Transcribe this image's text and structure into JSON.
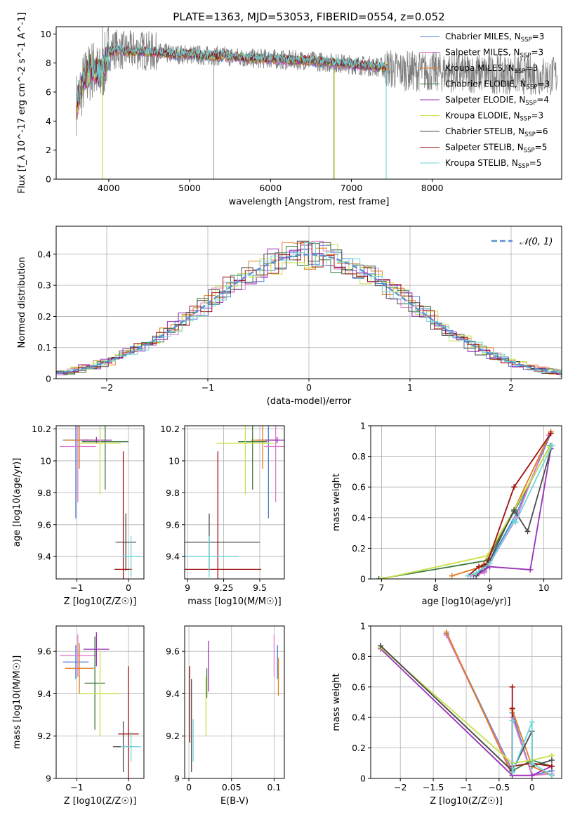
{
  "figure": {
    "title": "PLATE=1363, MJD=53053, FIBERID=0554, z=0.052"
  },
  "series_styles": [
    {
      "name": "Chabrier MILES, N_SSP=3",
      "color": "#4f81d3"
    },
    {
      "name": "Salpeter MILES, N_SSP=3",
      "color": "#e07bd0"
    },
    {
      "name": "Kroupa MILES, N_SSP=3",
      "color": "#e07b1e"
    },
    {
      "name": "Chabrier ELODIE, N_SSP=3",
      "color": "#3c7a3c"
    },
    {
      "name": "Salpeter ELODIE, N_SSP=4",
      "color": "#9a2eb8"
    },
    {
      "name": "Kroupa ELODIE, N_SSP=3",
      "color": "#c9e04a"
    },
    {
      "name": "Chabrier STELIB, N_SSP=6",
      "color": "#4d4d4d"
    },
    {
      "name": "Salpeter STELIB, N_SSP=5",
      "color": "#a01010"
    },
    {
      "name": "Kroupa STELIB, N_SSP=5",
      "color": "#6fd6dc"
    }
  ],
  "chart_data": [
    {
      "id": "spectrum",
      "type": "line",
      "title": "PLATE=1363, MJD=53053, FIBERID=0554, z=0.052",
      "xlabel": "wavelength [Angstrom, rest frame]",
      "ylabel": "Flux [f_λ 10^-17 erg cm^-2 s^-1 A^-1]",
      "xlim": [
        3350,
        9600
      ],
      "ylim": [
        0,
        10.5
      ],
      "xticks": [
        4000,
        5000,
        6000,
        7000,
        8000
      ],
      "yticks": [
        0,
        2,
        4,
        6,
        8,
        10
      ],
      "legend": {
        "placement": "top-right",
        "entries": [
          "Chabrier MILES, N_SSP=3",
          "Salpeter MILES, N_SSP=3",
          "Kroupa MILES, N_SSP=3",
          "Chabrier ELODIE, N_SSP=3",
          "Salpeter ELODIE, N_SSP=4",
          "Kroupa ELODIE, N_SSP=3",
          "Chabrier STELIB, N_SSP=6",
          "Salpeter STELIB, N_SSP=5",
          "Kroupa STELIB, N_SSP=5"
        ]
      },
      "data_envelope": {
        "x": [
          3600,
          3700,
          3800,
          3900,
          4000,
          4100,
          4200,
          4400,
          4600,
          4800,
          5000,
          5200,
          5400,
          5600,
          5800,
          6000,
          6200,
          6400,
          6600,
          6800,
          7000,
          7200,
          7400,
          7500
        ],
        "y": [
          5.2,
          6.8,
          7.6,
          7.0,
          8.8,
          9.0,
          8.8,
          8.9,
          8.7,
          8.6,
          8.6,
          8.5,
          8.5,
          8.4,
          8.3,
          8.3,
          8.2,
          8.2,
          8.1,
          8.0,
          7.9,
          7.8,
          7.7,
          7.6
        ]
      },
      "model_curve": {
        "x": [
          3600,
          3700,
          3800,
          3900,
          4000,
          4100,
          4200,
          4400,
          4600,
          4800,
          5000,
          5200,
          5400,
          5600,
          5800,
          6000,
          6200,
          6400,
          6600,
          6800,
          7000,
          7200,
          7400,
          7500
        ],
        "y": [
          5.0,
          7.0,
          7.8,
          7.2,
          8.7,
          8.9,
          8.8,
          8.8,
          8.7,
          8.6,
          8.6,
          8.5,
          8.5,
          8.4,
          8.3,
          8.3,
          8.2,
          8.2,
          8.1,
          8.0,
          7.9,
          7.8,
          7.7,
          7.6
        ]
      }
    },
    {
      "id": "residuals",
      "type": "line",
      "xlabel": "(data-model)/error",
      "ylabel": "Normed distribution",
      "xlim": [
        -2.5,
        2.5
      ],
      "ylim": [
        0,
        0.49
      ],
      "xticks": [
        -2,
        -1,
        0,
        1,
        2
      ],
      "yticks": [
        0.0,
        0.1,
        0.2,
        0.3,
        0.4
      ],
      "grid": true,
      "legend": {
        "placement": "top-right",
        "entries": [
          "𝒩(0, 1)"
        ]
      },
      "gaussian": {
        "mean": 0,
        "sigma": 1
      }
    },
    {
      "id": "age_vs_Z",
      "type": "scatter",
      "xlabel": "Z [log10(Z/Z☉)]",
      "ylabel": "age [log10(age/yr)]",
      "xlim": [
        -1.4,
        0.3
      ],
      "ylim": [
        9.26,
        10.22
      ],
      "xticks": [
        -1,
        0
      ],
      "yticks": [
        9.4,
        9.6,
        9.8,
        10.0,
        10.2
      ],
      "grid": true,
      "points": [
        {
          "series": 0,
          "x": -1.02,
          "y": 10.13,
          "xerr": 0.25,
          "yerr": 0.49
        },
        {
          "series": 1,
          "x": -0.98,
          "y": 10.09,
          "xerr": 0.35,
          "yerr": 0.35
        },
        {
          "series": 2,
          "x": -0.95,
          "y": 10.13,
          "xerr": 0.28,
          "yerr": 0.18
        },
        {
          "series": 3,
          "x": -0.45,
          "y": 10.12,
          "xerr": 0.45,
          "yerr": 0.3
        },
        {
          "series": 4,
          "x": -0.62,
          "y": 10.13,
          "xerr": 0.3,
          "yerr": 0.02
        },
        {
          "series": 5,
          "x": -0.55,
          "y": 10.11,
          "xerr": 0.4,
          "yerr": 0.32
        },
        {
          "series": 6,
          "x": -0.05,
          "y": 9.49,
          "xerr": 0.2,
          "yerr": 0.18
        },
        {
          "series": 7,
          "x": -0.1,
          "y": 9.32,
          "xerr": 0.17,
          "yerr": 0.74
        },
        {
          "series": 8,
          "x": 0.05,
          "y": 9.4,
          "xerr": 0.2,
          "yerr": 0.13
        }
      ]
    },
    {
      "id": "age_vs_mass",
      "type": "scatter",
      "xlabel": "mass [log10(M/M☉)]",
      "ylabel": "",
      "xlim": [
        8.98,
        9.67
      ],
      "ylim": [
        9.26,
        10.22
      ],
      "xticks": [
        9.0,
        9.25,
        9.5
      ],
      "yticks": [
        9.4,
        9.6,
        9.8,
        10.0,
        10.2
      ],
      "grid": true,
      "points": [
        {
          "series": 0,
          "x": 9.56,
          "y": 10.13,
          "xerr": 0.08,
          "yerr": 0.49
        },
        {
          "series": 1,
          "x": 9.61,
          "y": 10.09,
          "xerr": 0.08,
          "yerr": 0.35
        },
        {
          "series": 2,
          "x": 9.52,
          "y": 10.13,
          "xerr": 0.08,
          "yerr": 0.18
        },
        {
          "series": 3,
          "x": 9.45,
          "y": 10.12,
          "xerr": 0.1,
          "yerr": 0.3
        },
        {
          "series": 4,
          "x": 9.62,
          "y": 10.13,
          "xerr": 0.08,
          "yerr": 0.02
        },
        {
          "series": 5,
          "x": 9.4,
          "y": 10.11,
          "xerr": 0.2,
          "yerr": 0.32
        },
        {
          "series": 6,
          "x": 9.15,
          "y": 9.49,
          "xerr": 0.35,
          "yerr": 0.18
        },
        {
          "series": 7,
          "x": 9.21,
          "y": 9.32,
          "xerr": 0.3,
          "yerr": 0.74
        },
        {
          "series": 8,
          "x": 9.15,
          "y": 9.4,
          "xerr": 0.2,
          "yerr": 0.13
        }
      ]
    },
    {
      "id": "massweight_vs_age",
      "type": "line",
      "xlabel": "age [log10(age/yr)]",
      "ylabel": "mass weight",
      "xlim": [
        6.8,
        10.33
      ],
      "ylim": [
        0,
        1.0
      ],
      "xticks": [
        7,
        8,
        9,
        10
      ],
      "yticks": [
        0.0,
        0.2,
        0.4,
        0.6,
        0.8,
        1.0
      ],
      "grid": true,
      "series": [
        {
          "series": 0,
          "x": [
            8.7,
            8.9,
            9.5,
            10.13
          ],
          "y": [
            0.02,
            0.05,
            0.43,
            0.95
          ]
        },
        {
          "series": 1,
          "x": [
            8.65,
            8.9,
            9.5,
            10.09
          ],
          "y": [
            0.02,
            0.04,
            0.4,
            0.94
          ]
        },
        {
          "series": 2,
          "x": [
            8.3,
            8.85,
            9.45,
            10.13
          ],
          "y": [
            0.02,
            0.08,
            0.45,
            0.96
          ]
        },
        {
          "series": 3,
          "x": [
            6.95,
            8.95,
            9.45,
            10.12
          ],
          "y": [
            0.0,
            0.12,
            0.44,
            0.87
          ]
        },
        {
          "series": 4,
          "x": [
            8.8,
            9.0,
            9.75,
            10.13
          ],
          "y": [
            0.04,
            0.08,
            0.06,
            0.85
          ]
        },
        {
          "series": 5,
          "x": [
            7.0,
            8.95,
            9.45,
            10.11
          ],
          "y": [
            0.0,
            0.15,
            0.45,
            0.86
          ]
        },
        {
          "series": 6,
          "x": [
            8.75,
            8.9,
            9.0,
            9.45,
            9.7,
            10.15
          ],
          "y": [
            0.02,
            0.08,
            0.12,
            0.45,
            0.31,
            0.87
          ]
        },
        {
          "series": 7,
          "x": [
            8.6,
            8.8,
            8.95,
            9.45,
            10.13
          ],
          "y": [
            0.02,
            0.08,
            0.1,
            0.6,
            0.95
          ]
        },
        {
          "series": 8,
          "x": [
            8.6,
            8.75,
            9.0,
            9.45,
            9.48,
            10.15
          ],
          "y": [
            0.02,
            0.04,
            0.1,
            0.38,
            0.37,
            0.87
          ]
        }
      ]
    },
    {
      "id": "mass_vs_Z",
      "type": "scatter",
      "xlabel": "Z [log10(Z/Z☉)]",
      "ylabel": "mass [log10(M/M☉)]",
      "xlim": [
        -1.4,
        0.3
      ],
      "ylim": [
        9.0,
        9.72
      ],
      "xticks": [
        -1,
        0
      ],
      "yticks": [
        9.0,
        9.2,
        9.4,
        9.6
      ],
      "grid": true,
      "points": [
        {
          "series": 0,
          "x": -1.02,
          "y": 9.55,
          "xerr": 0.25,
          "yerr": 0.08
        },
        {
          "series": 1,
          "x": -0.98,
          "y": 9.58,
          "xerr": 0.35,
          "yerr": 0.1
        },
        {
          "series": 2,
          "x": -0.95,
          "y": 9.52,
          "xerr": 0.28,
          "yerr": 0.12
        },
        {
          "series": 3,
          "x": -0.65,
          "y": 9.45,
          "xerr": 0.2,
          "yerr": 0.22
        },
        {
          "series": 4,
          "x": -0.62,
          "y": 9.61,
          "xerr": 0.25,
          "yerr": 0.08
        },
        {
          "series": 5,
          "x": -0.55,
          "y": 9.4,
          "xerr": 0.4,
          "yerr": 0.2
        },
        {
          "series": 6,
          "x": -0.1,
          "y": 9.15,
          "xerr": 0.2,
          "yerr": 0.12
        },
        {
          "series": 7,
          "x": 0.0,
          "y": 9.21,
          "xerr": 0.2,
          "yerr": 0.32
        },
        {
          "series": 8,
          "x": 0.05,
          "y": 9.15,
          "xerr": 0.2,
          "yerr": 0.07
        }
      ]
    },
    {
      "id": "mass_vs_EBV",
      "type": "scatter",
      "xlabel": "E(B-V)",
      "ylabel": "",
      "xlim": [
        -0.005,
        0.112
      ],
      "ylim": [
        9.0,
        9.72
      ],
      "xticks": [
        0.0,
        0.05,
        0.1
      ],
      "yticks": [
        9.0,
        9.2,
        9.4,
        9.6
      ],
      "grid": true,
      "points": [
        {
          "series": 0,
          "x": 0.104,
          "y": 9.55,
          "xerr": 0,
          "yerr": 0.08
        },
        {
          "series": 1,
          "x": 0.1,
          "y": 9.58,
          "xerr": 0,
          "yerr": 0.1
        },
        {
          "series": 2,
          "x": 0.105,
          "y": 9.48,
          "xerr": 0,
          "yerr": 0.09
        },
        {
          "series": 3,
          "x": 0.021,
          "y": 9.45,
          "xerr": 0,
          "yerr": 0.07
        },
        {
          "series": 4,
          "x": 0.023,
          "y": 9.53,
          "xerr": 0,
          "yerr": 0.12
        },
        {
          "series": 5,
          "x": 0.02,
          "y": 9.34,
          "xerr": 0,
          "yerr": 0.14
        },
        {
          "series": 6,
          "x": 0.003,
          "y": 9.25,
          "xerr": 0,
          "yerr": 0.22
        },
        {
          "series": 7,
          "x": 0.001,
          "y": 9.35,
          "xerr": 0,
          "yerr": 0.18
        },
        {
          "series": 8,
          "x": 0.005,
          "y": 9.18,
          "xerr": 0,
          "yerr": 0.1
        }
      ]
    },
    {
      "id": "massweight_vs_Z",
      "type": "line",
      "xlabel": "Z [log10(Z/Z☉)]",
      "ylabel": "mass weight",
      "xlim": [
        -2.45,
        0.45
      ],
      "ylim": [
        0,
        1.0
      ],
      "xticks": [
        -2.0,
        -1.5,
        -1.0,
        -0.5,
        0.0
      ],
      "yticks": [
        0.0,
        0.2,
        0.4,
        0.6,
        0.8,
        1.0
      ],
      "grid": true,
      "series": [
        {
          "series": 0,
          "x": [
            -1.3,
            -0.3,
            -0.3,
            0.0,
            0.3
          ],
          "y": [
            0.95,
            0.05,
            0.43,
            0.02,
            0.05
          ]
        },
        {
          "series": 1,
          "x": [
            -1.3,
            -0.3,
            -0.3,
            0.0,
            0.3
          ],
          "y": [
            0.94,
            0.04,
            0.4,
            0.02,
            0.03
          ]
        },
        {
          "series": 2,
          "x": [
            -1.3,
            -0.3,
            -0.3,
            0.0,
            0.3
          ],
          "y": [
            0.96,
            0.02,
            0.45,
            0.08,
            0.02
          ]
        },
        {
          "series": 3,
          "x": [
            -2.3,
            -0.3,
            0.0,
            0.3
          ],
          "y": [
            0.87,
            0.05,
            0.12,
            0.08
          ]
        },
        {
          "series": 4,
          "x": [
            -2.3,
            -0.3,
            0.0,
            0.3
          ],
          "y": [
            0.85,
            0.02,
            0.02,
            0.08
          ]
        },
        {
          "series": 5,
          "x": [
            -2.3,
            -0.3,
            0.0,
            0.3
          ],
          "y": [
            0.86,
            0.1,
            0.12,
            0.15
          ]
        },
        {
          "series": 6,
          "x": [
            -2.3,
            -0.3,
            0.0,
            0.0,
            0.3
          ],
          "y": [
            0.87,
            0.05,
            0.31,
            0.08,
            0.12
          ]
        },
        {
          "series": 7,
          "x": [
            -0.3,
            -0.3,
            -0.3,
            0.0,
            0.3
          ],
          "y": [
            0.6,
            0.46,
            0.08,
            0.1,
            0.08
          ]
        },
        {
          "series": 8,
          "x": [
            -0.3,
            -0.3,
            0.0,
            0.0,
            0.3
          ],
          "y": [
            0.38,
            0.04,
            0.37,
            0.1,
            0.02
          ]
        }
      ]
    }
  ]
}
